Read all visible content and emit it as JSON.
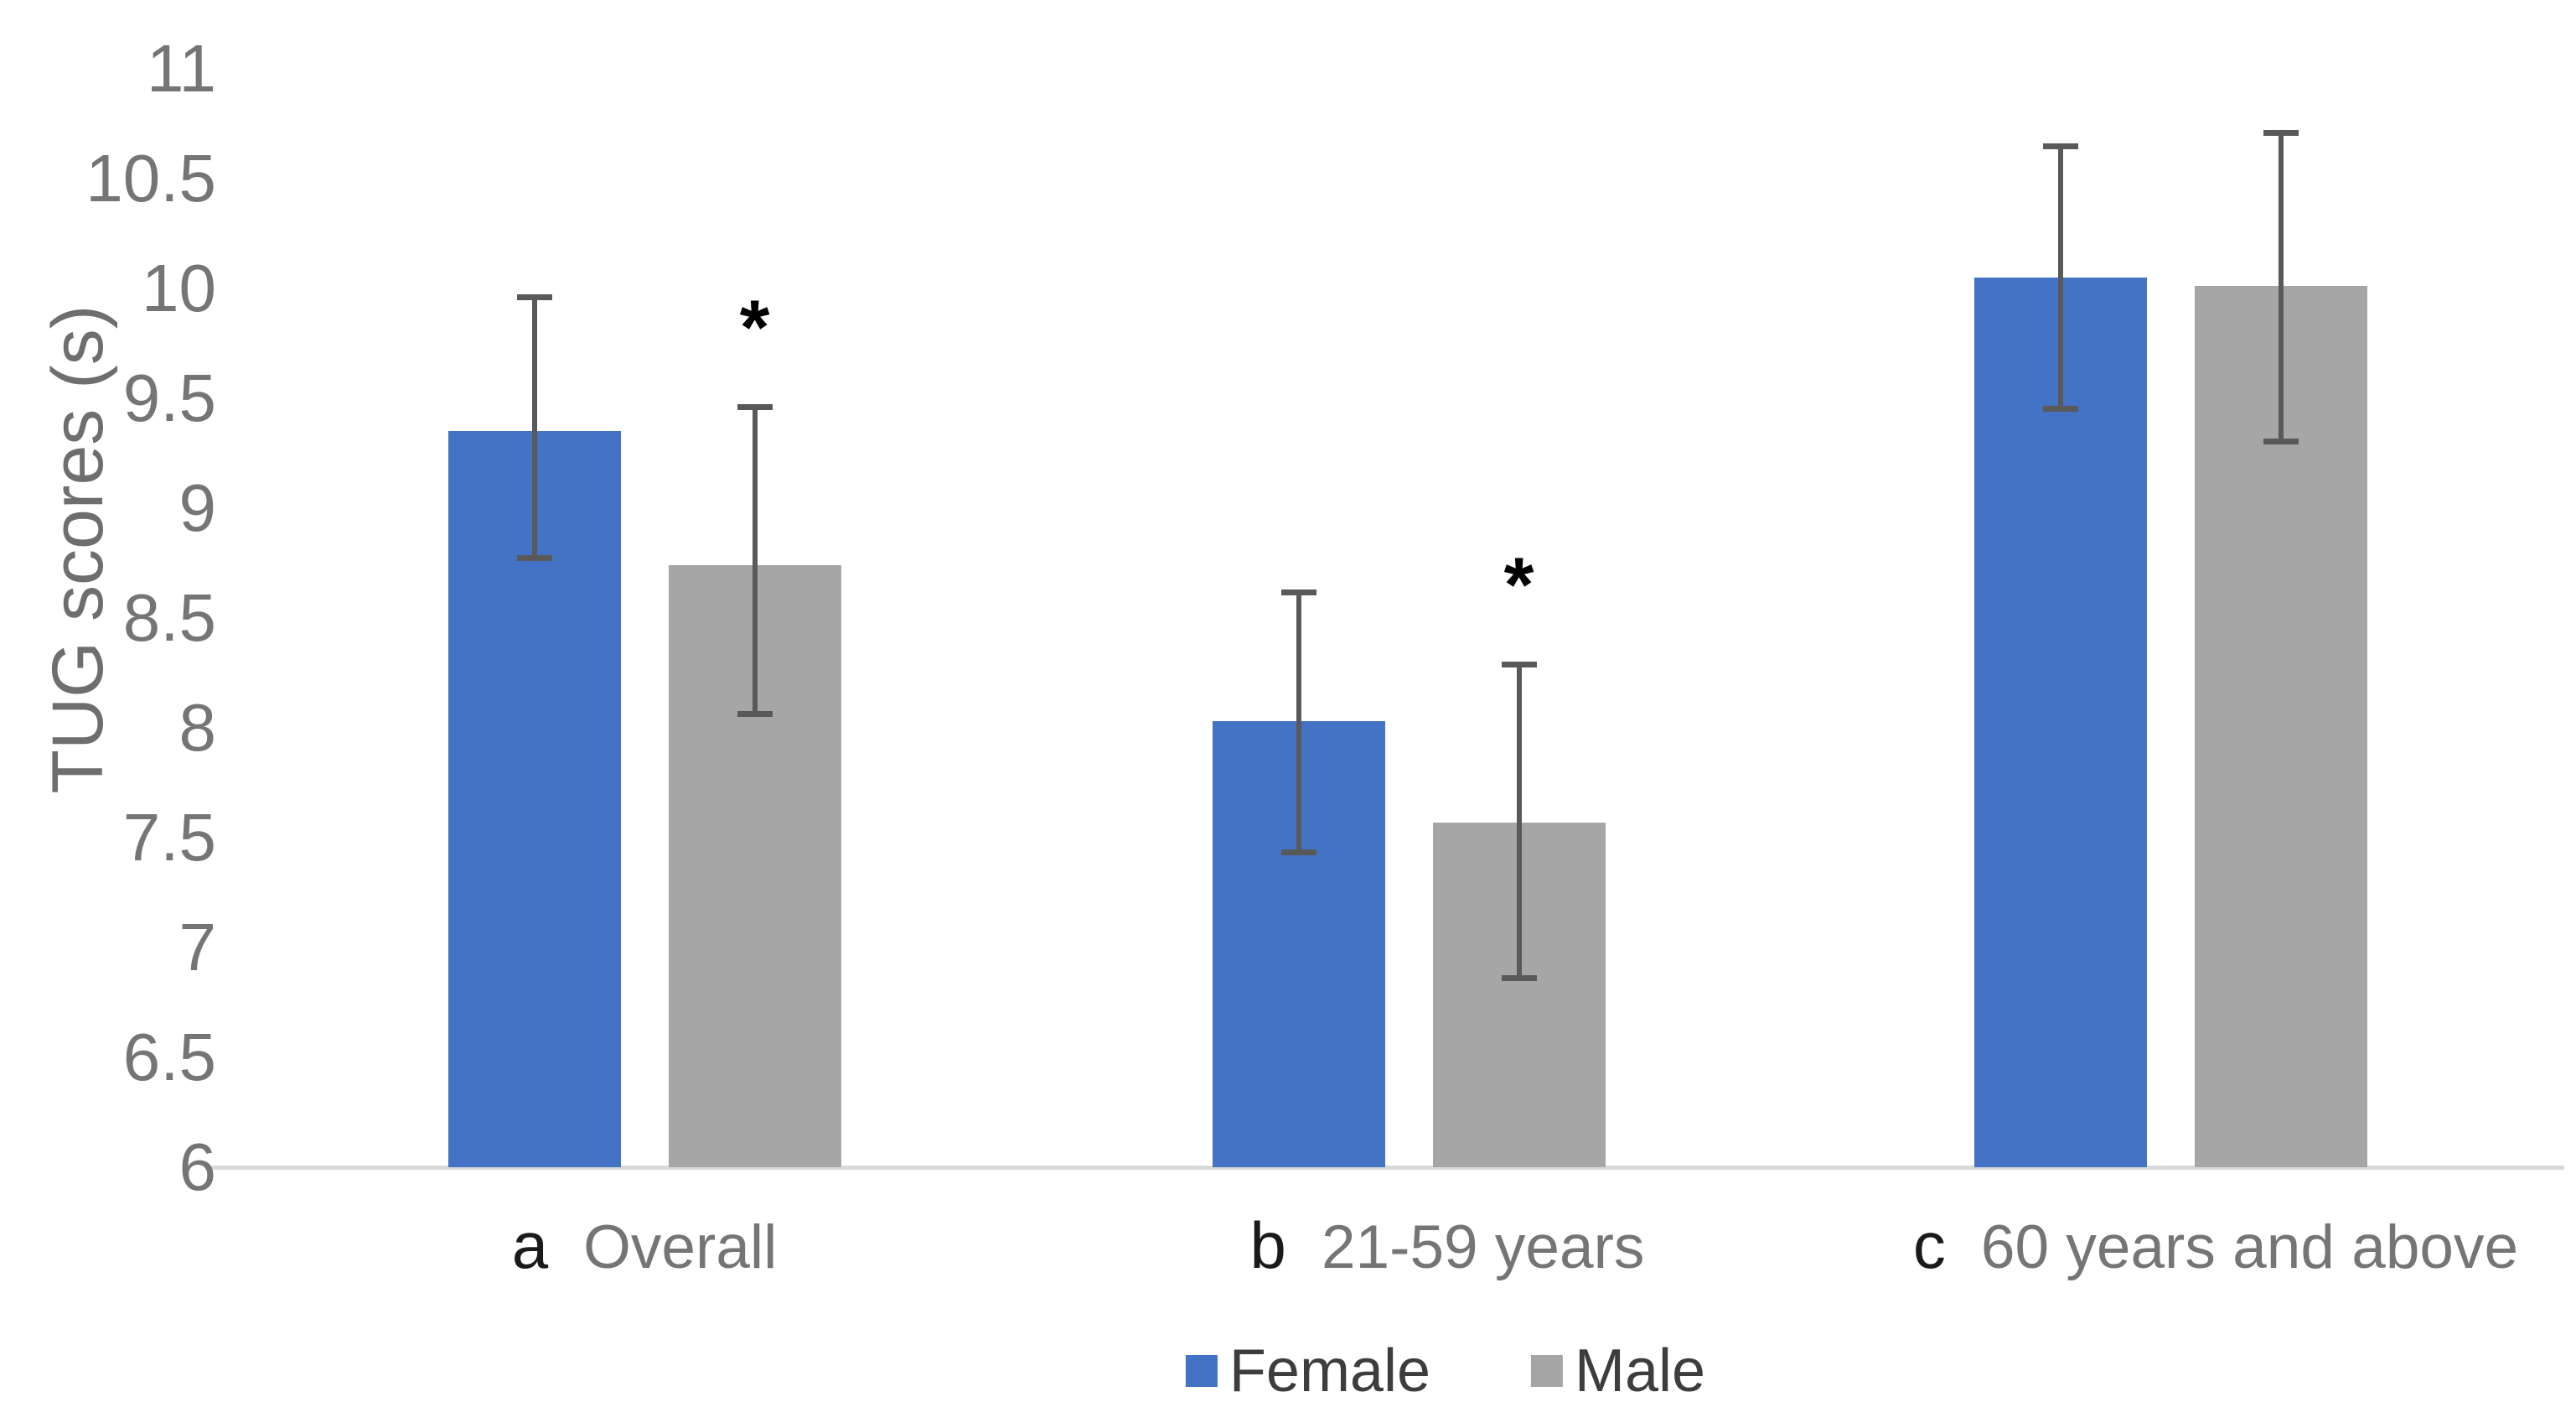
{
  "chart_data": {
    "type": "bar",
    "title": "",
    "ylabel": "TUG scores (s)",
    "xlabel": "",
    "ylim": [
      6,
      11
    ],
    "ytick_step": 0.5,
    "yticks": [
      6,
      6.5,
      7,
      7.5,
      8,
      8.5,
      9,
      9.5,
      10,
      10.5,
      11
    ],
    "grid": false,
    "panel_letters": [
      "a",
      "b",
      "c"
    ],
    "categories": [
      "Overall",
      "21-59 years",
      "60 years and above"
    ],
    "series": [
      {
        "name": "Female",
        "color": "#4472C4",
        "values": [
          9.35,
          8.03,
          10.05
        ],
        "err_low": [
          8.77,
          7.43,
          9.45
        ],
        "err_high": [
          9.96,
          8.62,
          10.65
        ],
        "significance": [
          null,
          null,
          null
        ]
      },
      {
        "name": "Male",
        "color": "#A6A6A6",
        "values": [
          8.74,
          7.57,
          10.01
        ],
        "err_low": [
          8.06,
          6.86,
          9.3
        ],
        "err_high": [
          9.46,
          8.29,
          10.71
        ],
        "significance": [
          "*",
          "*",
          null
        ]
      }
    ],
    "legend": {
      "position": "bottom",
      "entries": [
        "Female",
        "Male"
      ]
    },
    "significance_marker": "*",
    "error_bar_color": "#595959",
    "axis_line_color": "#D9D9D9",
    "tick_label_color": "#757575",
    "category_label_color": "#757575",
    "panel_letter_color": "#1A1A1A"
  }
}
